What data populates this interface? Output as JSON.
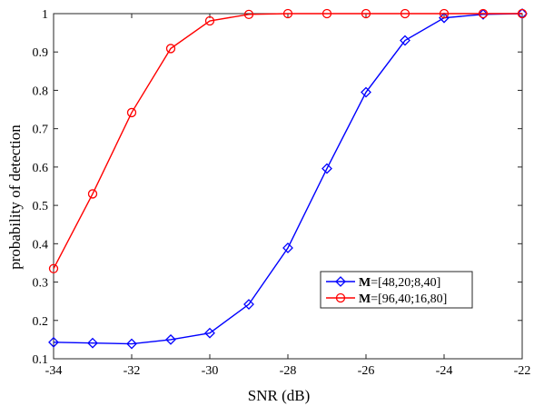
{
  "chart_data": {
    "type": "line",
    "xlabel": "SNR (dB)",
    "ylabel": "probability of detection",
    "xlim": [
      -34,
      -22
    ],
    "ylim": [
      0.1,
      1
    ],
    "xticks": [
      -34,
      -32,
      -30,
      -28,
      -26,
      -24,
      -22
    ],
    "yticks": [
      0.1,
      0.2,
      0.3,
      0.4,
      0.5,
      0.6,
      0.7,
      0.8,
      0.9,
      1
    ],
    "xtick_labels": [
      "-34",
      "-32",
      "-30",
      "-28",
      "-26",
      "-24",
      "-22"
    ],
    "ytick_labels": [
      "0.1",
      "0.2",
      "0.3",
      "0.4",
      "0.5",
      "0.6",
      "0.7",
      "0.8",
      "0.9",
      "1"
    ],
    "grid": false,
    "legend_position": "lower-right",
    "series": [
      {
        "name": "M=[48,20;8,40]",
        "name_bold": "M",
        "name_rest": "=[48,20;8,40]",
        "color": "#0000ff",
        "marker": "diamond",
        "x": [
          -34,
          -33,
          -32,
          -31,
          -30,
          -29,
          -28,
          -27,
          -26,
          -25,
          -24,
          -23,
          -22
        ],
        "y": [
          0.143,
          0.141,
          0.139,
          0.15,
          0.167,
          0.242,
          0.389,
          0.596,
          0.795,
          0.93,
          0.989,
          0.998,
          1.0
        ]
      },
      {
        "name": "M=[96,40;16,80]",
        "name_bold": "M",
        "name_rest": "=[96,40;16,80]",
        "color": "#ff0000",
        "marker": "circle",
        "x": [
          -34,
          -33,
          -32,
          -31,
          -30,
          -29,
          -28,
          -27,
          -26,
          -25,
          -24,
          -23,
          -22
        ],
        "y": [
          0.335,
          0.53,
          0.742,
          0.909,
          0.981,
          0.998,
          1.0,
          1.0,
          1.0,
          1.0,
          1.0,
          1.0,
          1.0
        ]
      }
    ]
  }
}
